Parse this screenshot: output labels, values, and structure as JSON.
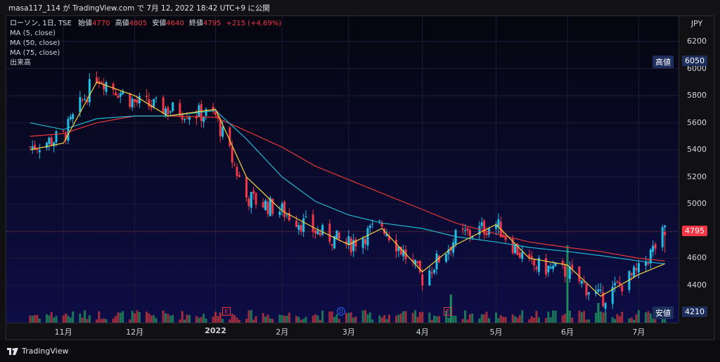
{
  "header": {
    "text": "masa117_114 が TradingView.com で 7月 12, 2022 18:42 UTC+9 に公開"
  },
  "legend": {
    "title": "ローソン, 1日, TSE",
    "open_label": "始値",
    "open": "4770",
    "high_label": "高値",
    "high": "4805",
    "low_label": "安値",
    "low": "4640",
    "close_label": "終値",
    "close": "4795",
    "change": "+215 (+4.69%)",
    "ma5": "MA (5, close)",
    "ma50": "MA (50, close)",
    "ma75": "MA (75, close)",
    "volume": "出来高"
  },
  "axis": {
    "currency": "JPY",
    "y_ticks": [
      "6200",
      "6000",
      "5800",
      "5600",
      "5400",
      "5200",
      "5000",
      "4800",
      "4600",
      "4400"
    ],
    "x_ticks": [
      "11月",
      "12月",
      "2022",
      "2月",
      "3月",
      "4月",
      "5月",
      "6月",
      "7月"
    ]
  },
  "tags": {
    "high_label": "高値",
    "high_value": "6050",
    "last_value": "4795",
    "low_label": "安値",
    "low_value": "4210"
  },
  "markers": {
    "earnings": "E",
    "dividend": "D"
  },
  "footer": {
    "brand": "TradingView"
  },
  "colors": {
    "up": "#26a69a",
    "up_bright": "#1ec0e6",
    "down": "#f23645",
    "ma5": "#f5d442",
    "ma50": "#22b8cf",
    "ma75": "#e53935"
  },
  "chart_data": {
    "type": "candlestick",
    "symbol": "ローソン",
    "interval": "1日",
    "exchange": "TSE",
    "ylim": [
      4200,
      6300
    ],
    "x": [
      "2021-10-18",
      "2021-11-01",
      "2021-11-15",
      "2021-12-01",
      "2021-12-15",
      "2022-01-04",
      "2022-01-17",
      "2022-02-01",
      "2022-02-15",
      "2022-03-01",
      "2022-03-15",
      "2022-04-01",
      "2022-04-15",
      "2022-05-02",
      "2022-05-16",
      "2022-06-01",
      "2022-06-15",
      "2022-07-01",
      "2022-07-12"
    ],
    "close": [
      5420,
      5500,
      5950,
      5750,
      5700,
      5650,
      5050,
      4950,
      4800,
      4700,
      4850,
      4450,
      4750,
      4850,
      4550,
      4500,
      4300,
      4500,
      4795
    ],
    "ma5": [
      5400,
      5450,
      5900,
      5800,
      5650,
      5700,
      5200,
      4950,
      4820,
      4700,
      4820,
      4500,
      4700,
      4850,
      4600,
      4550,
      4320,
      4480,
      4560
    ],
    "ma50": [
      5600,
      5550,
      5630,
      5650,
      5650,
      5690,
      5480,
      5200,
      5020,
      4920,
      4860,
      4820,
      4760,
      4720,
      4680,
      4650,
      4620,
      4580,
      4560
    ],
    "ma75": [
      5500,
      5520,
      5600,
      5650,
      5650,
      5640,
      5540,
      5420,
      5280,
      5180,
      5080,
      4960,
      4860,
      4780,
      4720,
      4680,
      4650,
      4600,
      4580
    ],
    "last": {
      "open": 4770,
      "high": 4805,
      "low": 4640,
      "close": 4795,
      "change": 215,
      "change_pct": 4.69
    },
    "range_high": 6050,
    "range_low": 4210
  }
}
